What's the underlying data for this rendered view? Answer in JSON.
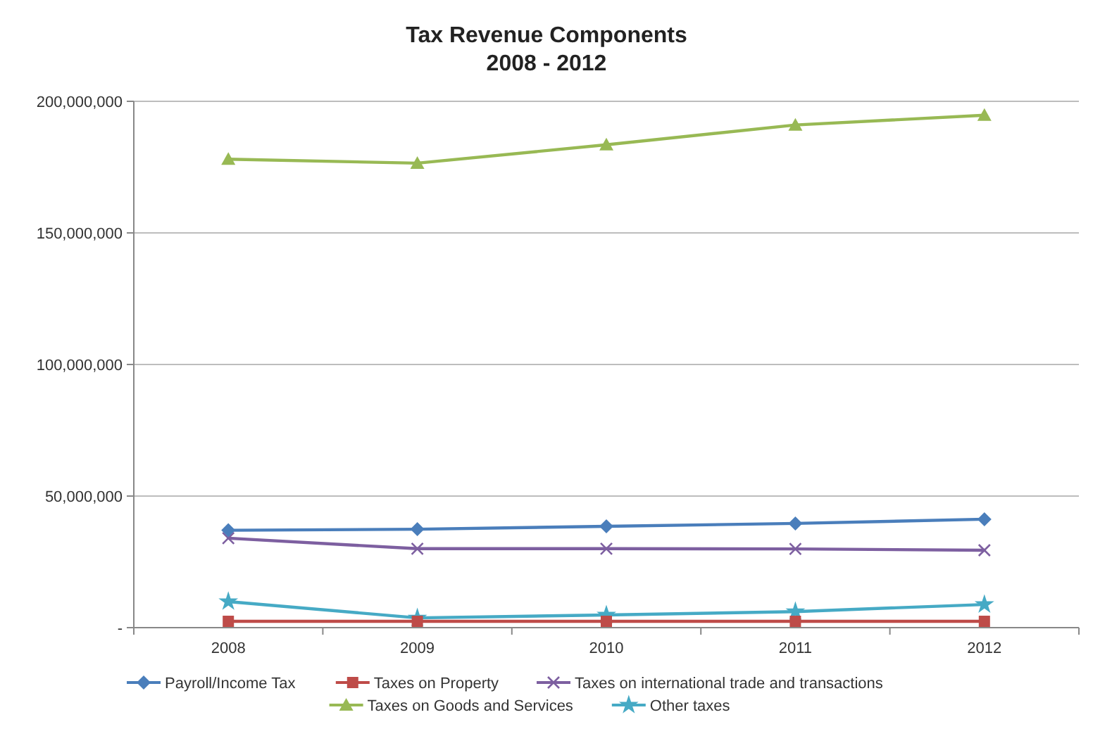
{
  "chart_data": {
    "type": "line",
    "title": "Tax Revenue Components\n2008 - 2012",
    "categories": [
      "2008",
      "2009",
      "2010",
      "2011",
      "2012"
    ],
    "series": [
      {
        "name": "Payroll/Income Tax",
        "color": "#4a7ebb",
        "marker": "diamond",
        "values": [
          37000000,
          37400000,
          38500000,
          39600000,
          41200000
        ]
      },
      {
        "name": "Taxes on Property",
        "color": "#be4b48",
        "marker": "square",
        "values": [
          2400000,
          2400000,
          2400000,
          2400000,
          2400000
        ]
      },
      {
        "name": "Taxes on international trade and transactions",
        "color": "#7d5fa0",
        "marker": "cross",
        "values": [
          34000000,
          30000000,
          30000000,
          29900000,
          29400000
        ]
      },
      {
        "name": "Taxes on Goods and Services",
        "color": "#98b954",
        "marker": "triangle",
        "values": [
          178000000,
          176500000,
          183500000,
          191000000,
          194700000
        ]
      },
      {
        "name": "Other taxes",
        "color": "#46aac5",
        "marker": "star",
        "values": [
          9900000,
          3700000,
          4800000,
          6100000,
          8800000
        ]
      }
    ],
    "ylim": [
      0,
      200000000
    ],
    "yticks": [
      {
        "value": 0,
        "label": "-"
      },
      {
        "value": 50000000,
        "label": "50,000,000"
      },
      {
        "value": 100000000,
        "label": "100,000,000"
      },
      {
        "value": 150000000,
        "label": "150,000,000"
      },
      {
        "value": 200000000,
        "label": "200,000,000"
      }
    ],
    "grid": "y",
    "legend": "bottom",
    "line_style": "solid"
  }
}
